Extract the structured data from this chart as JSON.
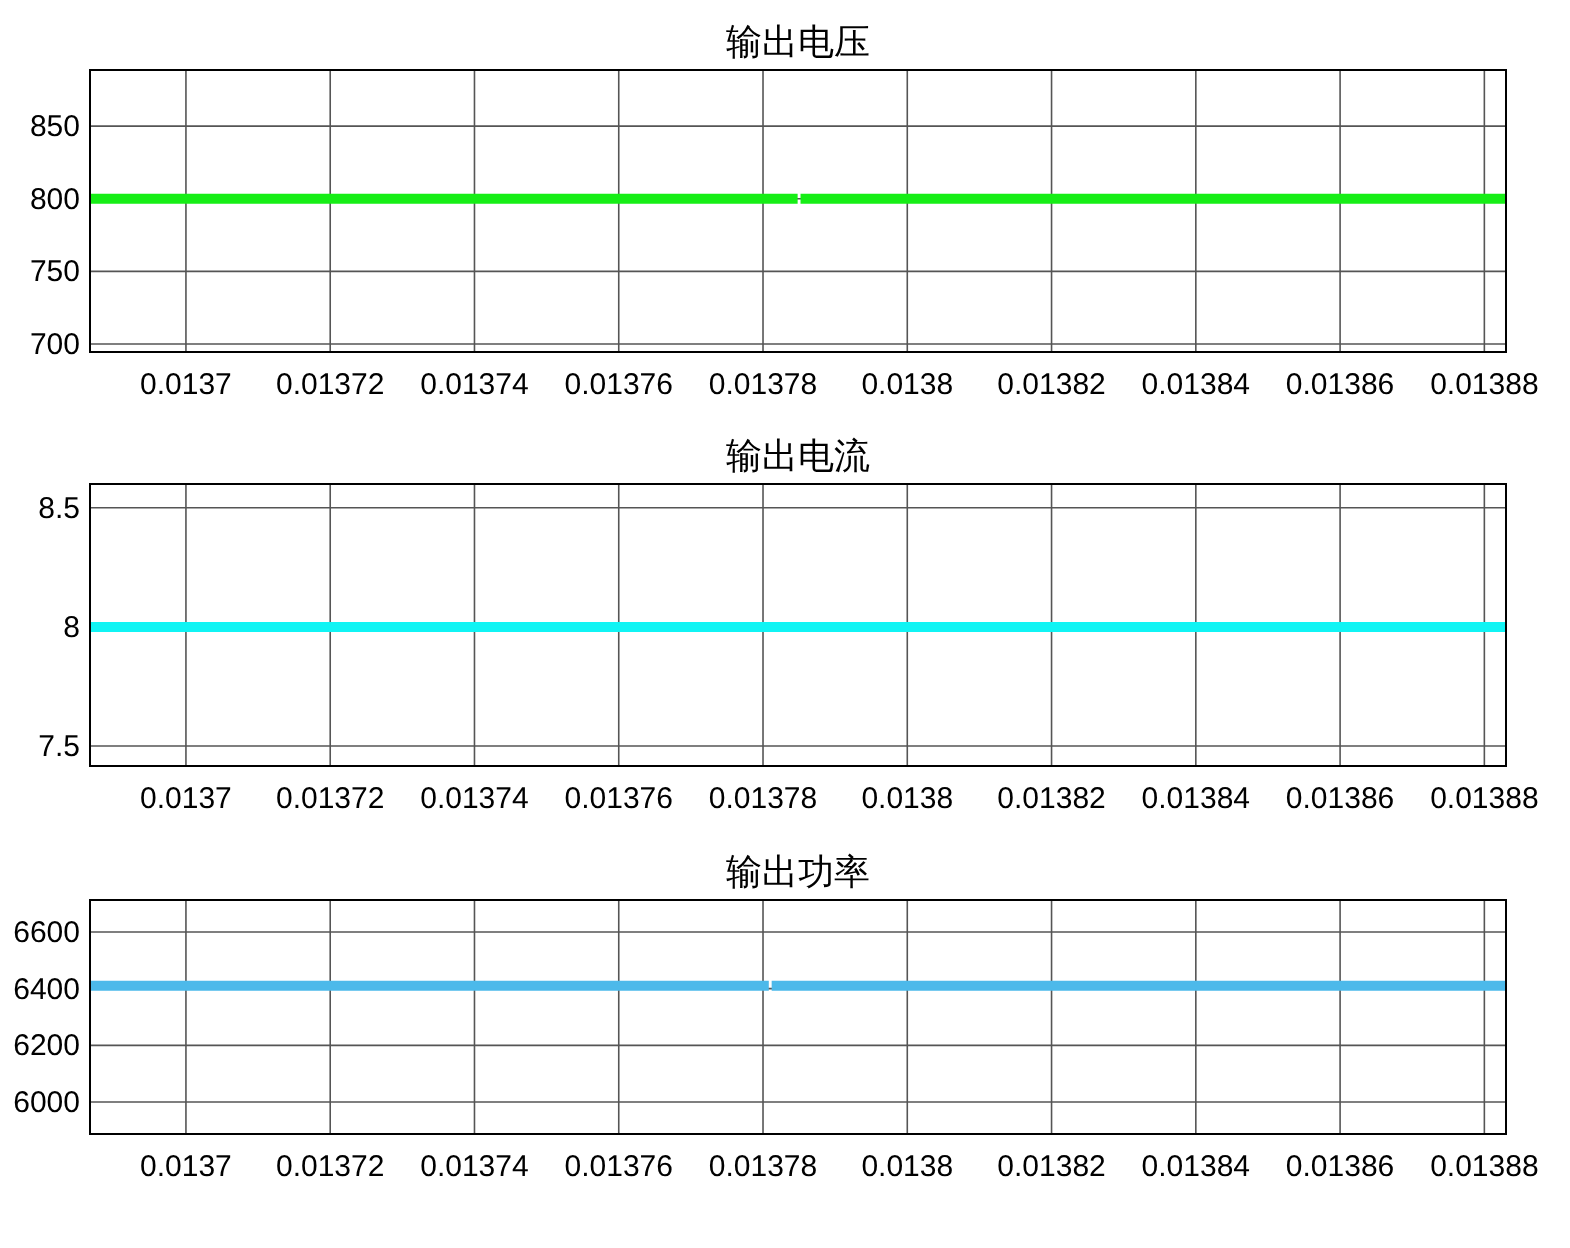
{
  "chart_data": [
    {
      "type": "line",
      "title": "输出电压",
      "x": [
        0.0136867,
        0.0137848,
        null,
        0.0137852,
        0.013883
      ],
      "series": [
        {
          "color": "#16ee16",
          "values": [
            800,
            800,
            null,
            800,
            800
          ]
        }
      ],
      "xlim": [
        0.0136867,
        0.013883
      ],
      "xticks": [
        0.0137,
        0.01372,
        0.01374,
        0.01376,
        0.01378,
        0.0138,
        0.01382,
        0.01384,
        0.01386,
        0.01388
      ],
      "ylim": [
        694.5,
        888.6
      ],
      "yticks": [
        700,
        750,
        800,
        850
      ],
      "grid": true,
      "marker": "none",
      "line_style": "solid"
    },
    {
      "type": "line",
      "title": "输出电流",
      "x": [
        0.0136867,
        0.013883
      ],
      "series": [
        {
          "color": "#10f4f4",
          "values": [
            8,
            8
          ]
        }
      ],
      "xlim": [
        0.0136867,
        0.013883
      ],
      "xticks": [
        0.0137,
        0.01372,
        0.01374,
        0.01376,
        0.01378,
        0.0138,
        0.01382,
        0.01384,
        0.01386,
        0.01388
      ],
      "ylim": [
        7.416,
        8.6
      ],
      "yticks": [
        7.5,
        8,
        8.5
      ],
      "grid": true,
      "marker": "none",
      "line_style": "solid"
    },
    {
      "type": "line",
      "title": "输出功率",
      "x": [
        0.0136867,
        0.0137808,
        null,
        0.0137812,
        0.013883
      ],
      "series": [
        {
          "color": "#4cb9ea",
          "values": [
            6410,
            6410,
            null,
            6410,
            6410
          ]
        }
      ],
      "xlim": [
        0.0136867,
        0.013883
      ],
      "xticks": [
        0.0137,
        0.01372,
        0.01374,
        0.01376,
        0.01378,
        0.0138,
        0.01382,
        0.01384,
        0.01386,
        0.01388
      ],
      "ylim": [
        5887,
        6713
      ],
      "yticks": [
        6000,
        6200,
        6400,
        6600
      ],
      "grid": true,
      "marker": "none",
      "line_style": "solid"
    }
  ]
}
